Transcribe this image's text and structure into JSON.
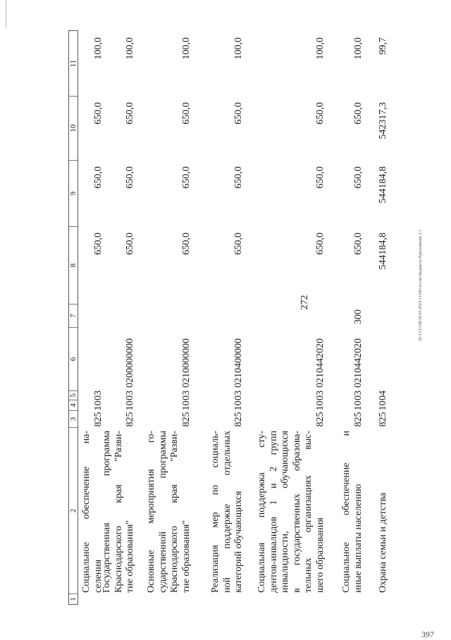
{
  "page_number_top": "272",
  "page_number_bottom": "397",
  "footer_note": "20.3.ССОВ/30.05.2019/12:08/сессия-бюджета-Приложение 2.1",
  "table": {
    "header": [
      "1",
      "2",
      "3",
      "4",
      "5",
      "6",
      "7",
      "8",
      "9",
      "10",
      "11"
    ],
    "rows": [
      {
        "name": [
          "Социальное обеспечение на-",
          "селения"
        ],
        "c3": "825",
        "c4": "10",
        "c5": "03",
        "c6": "",
        "c7": "",
        "c8": "650,0",
        "c9": "650,0",
        "c10": "650,0",
        "c11": "100,0"
      },
      {
        "name": [
          "Государственная программа",
          "Краснодарского края \"Разви-",
          "тие образования\""
        ],
        "c3": "825",
        "c4": "10",
        "c5": "03",
        "c6": "0200000000",
        "c7": "",
        "c8": "650,0",
        "c9": "650,0",
        "c10": "650,0",
        "c11": "100,0"
      },
      {
        "name": [
          "Основные мероприятия го-",
          "сударственной программы",
          "Краснодарского края \"Разви-",
          "тие образования\""
        ],
        "c3": "825",
        "c4": "10",
        "c5": "03",
        "c6": "0210000000",
        "c7": "",
        "c8": "650,0",
        "c9": "650,0",
        "c10": "650,0",
        "c11": "100,0"
      },
      {
        "name": [
          "Реализация мер по социаль-",
          "ной поддержке отдельных",
          "категорий обучающихся"
        ],
        "c3": "825",
        "c4": "10",
        "c5": "03",
        "c6": "0210400000",
        "c7": "",
        "c8": "650,0",
        "c9": "650,0",
        "c10": "650,0",
        "c11": "100,0"
      },
      {
        "name": [
          "Социальная поддержка сту-",
          "дентов-инвалидов 1 и 2 групп",
          "инвалидности, обучающихся",
          "в государственных образова-",
          "тельных организациях выс-",
          "шего образования"
        ],
        "c3": "825",
        "c4": "10",
        "c5": "03",
        "c6": "0210442020",
        "c7": "",
        "c8": "650,0",
        "c9": "650,0",
        "c10": "650,0",
        "c11": "100,0"
      },
      {
        "name": [
          "Социальное обеспечение и",
          "иные выплаты населению"
        ],
        "c3": "825",
        "c4": "10",
        "c5": "03",
        "c6": "0210442020",
        "c7": "300",
        "c8": "650,0",
        "c9": "650,0",
        "c10": "650,0",
        "c11": "100,0"
      },
      {
        "name": [
          "Охрана семьи и детства"
        ],
        "c3": "825",
        "c4": "10",
        "c5": "04",
        "c6": "",
        "c7": "",
        "c8": "544184,8",
        "c9": "544184,8",
        "c10": "542317,3",
        "c11": "99,7"
      }
    ]
  }
}
